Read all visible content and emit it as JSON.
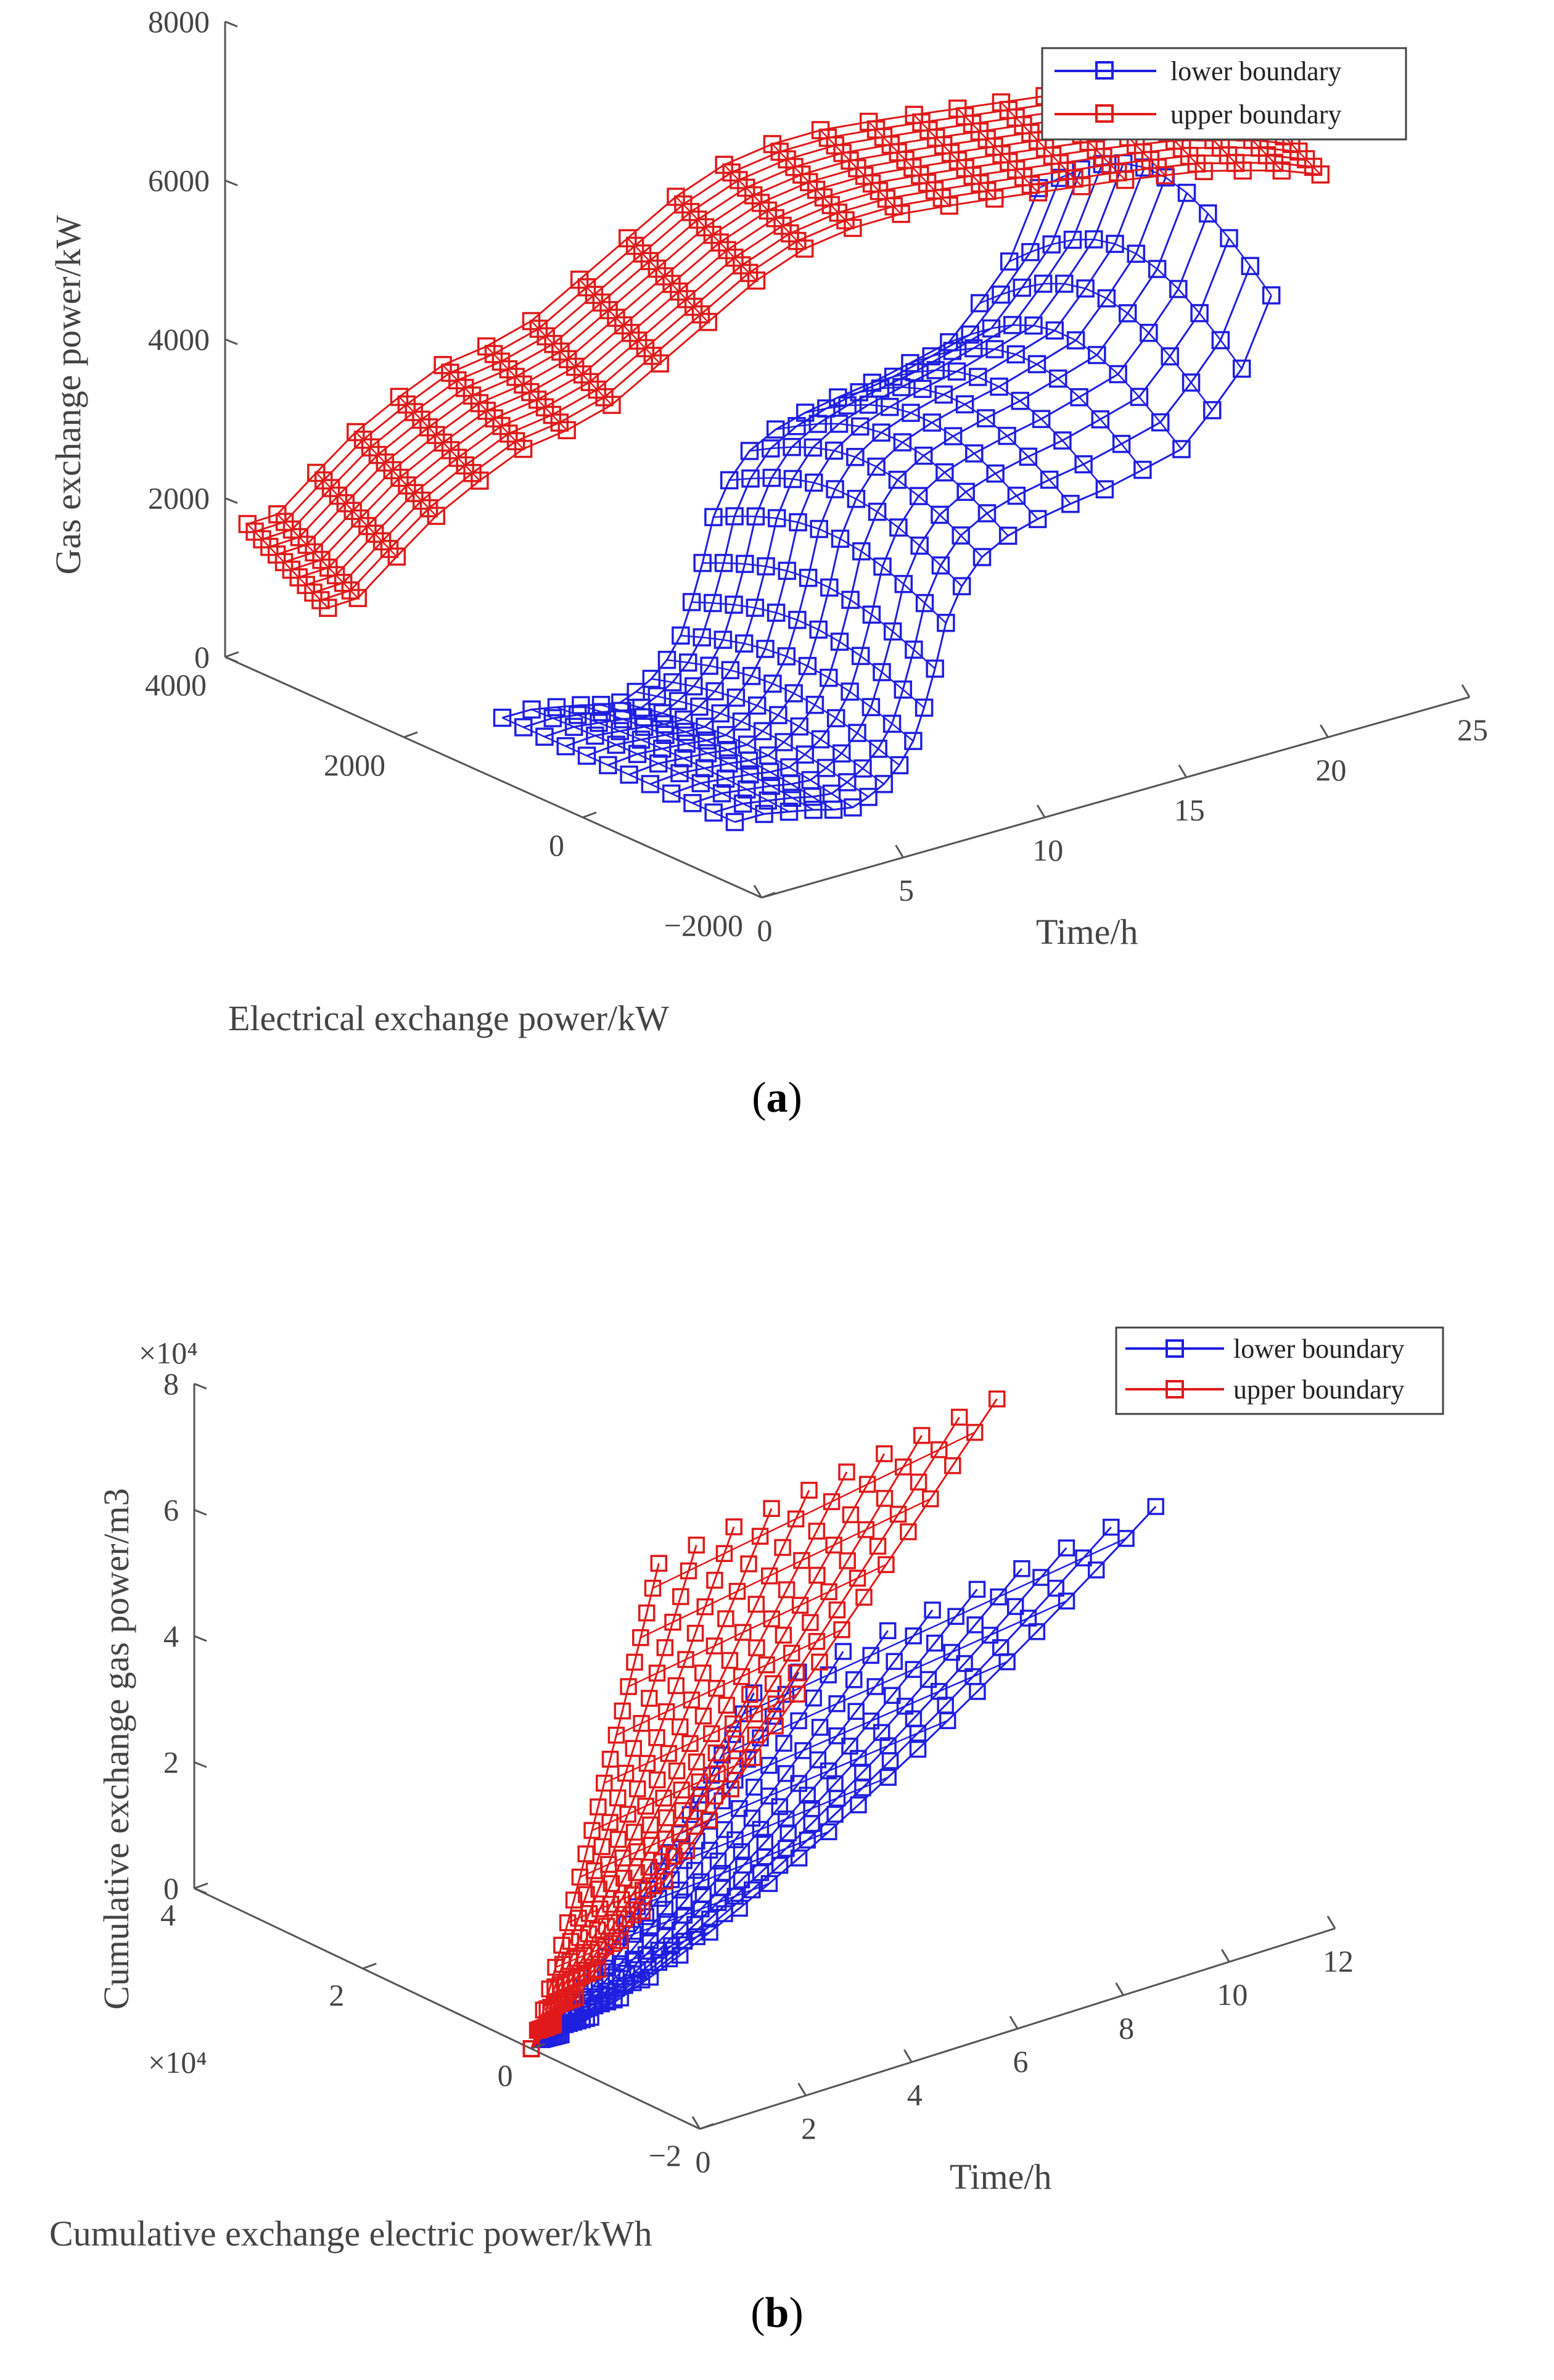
{
  "chart_data": [
    {
      "type": "3d-line",
      "panel": "a",
      "caption_letter": "a",
      "xlabel": "Time/h",
      "ylabel": "Electrical exchange power/kW",
      "zlabel": "Gas exchange power/kW",
      "x_ticks": [
        "0",
        "5",
        "10",
        "15",
        "20",
        "25"
      ],
      "y_ticks": [
        "4000",
        "2000",
        "0",
        "−2000"
      ],
      "z_ticks": [
        "0",
        "2000",
        "4000",
        "6000",
        "8000"
      ],
      "xlim": [
        0,
        25
      ],
      "ylim": [
        -2000,
        4000
      ],
      "zlim": [
        0,
        8000
      ],
      "legend": {
        "position": "top-right",
        "entries": [
          "lower boundary",
          "upper boundary"
        ]
      },
      "series": [
        {
          "name": "lower boundary",
          "color": "#1f1fe0",
          "marker": "square",
          "profile_t": [
            1,
            3,
            5,
            7,
            9,
            11,
            13,
            15,
            17,
            19,
            21,
            23,
            24
          ],
          "profile_y": [
            -400,
            -300,
            -100,
            200,
            500,
            900,
            1300,
            1500,
            1500,
            1400,
            1200,
            1200,
            1200
          ],
          "profile_z": [
            800,
            600,
            300,
            200,
            300,
            700,
            1400,
            1800,
            2000,
            2200,
            2600,
            3400,
            4200
          ]
        },
        {
          "name": "upper boundary",
          "color": "#e01a1a",
          "marker": "square",
          "profile_t": [
            1,
            3,
            5,
            7,
            9,
            11,
            13,
            15,
            17,
            19,
            21,
            23,
            24
          ],
          "profile_y": [
            3300,
            3100,
            2800,
            2500,
            2100,
            1700,
            1300,
            900,
            600,
            300,
            100,
            -100,
            -200
          ],
          "profile_z": [
            1500,
            2400,
            3200,
            3600,
            4600,
            5600,
            6100,
            6300,
            6400,
            6500,
            6500,
            6400,
            6300
          ]
        }
      ]
    },
    {
      "type": "3d-line",
      "panel": "b",
      "caption_letter": "b",
      "xlabel": "Time/h",
      "ylabel": "Cumulative exchange electric power/kWh",
      "zlabel": "Cumulative exchange gas power/m3",
      "y_exponent": "×10⁴",
      "z_exponent": "×10⁴",
      "x_ticks": [
        "0",
        "2",
        "4",
        "6",
        "8",
        "10",
        "12"
      ],
      "y_ticks": [
        "4",
        "2",
        "0",
        "−2"
      ],
      "z_ticks": [
        "0",
        "2",
        "4",
        "6",
        "8"
      ],
      "xlim": [
        0,
        12
      ],
      "ylim": [
        -2,
        4
      ],
      "zlim": [
        0,
        8
      ],
      "legend": {
        "position": "top-right",
        "entries": [
          "lower boundary",
          "upper boundary"
        ]
      },
      "series": [
        {
          "name": "lower boundary",
          "color": "#1f1fe0",
          "marker": "square",
          "end_point": {
            "t": 11,
            "y": -0.5,
            "z": 6
          },
          "middle_point": {
            "t": 5,
            "y": 0.5,
            "z": 4
          }
        },
        {
          "name": "upper boundary",
          "color": "#e01a1a",
          "marker": "square",
          "end_point": {
            "t": 8,
            "y": -0.5,
            "z": 8.5
          },
          "middle_point": {
            "t": 4,
            "y": 1,
            "z": 6
          }
        }
      ]
    }
  ]
}
